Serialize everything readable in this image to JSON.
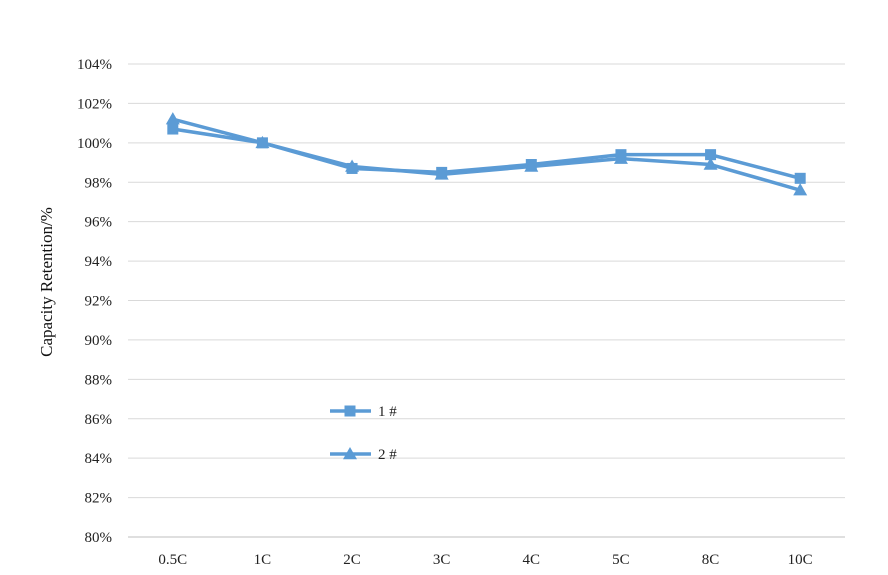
{
  "chart_data": {
    "type": "line",
    "categories": [
      "0.5C",
      "1C",
      "2C",
      "3C",
      "4C",
      "5C",
      "8C",
      "10C"
    ],
    "series": [
      {
        "name": "1 #",
        "marker": "square",
        "color": "#5b9bd5",
        "values": [
          100.7,
          100.0,
          98.7,
          98.5,
          98.9,
          99.4,
          99.4,
          98.2
        ]
      },
      {
        "name": "2 #",
        "marker": "triangle",
        "color": "#5b9bd5",
        "values": [
          101.2,
          100.0,
          98.8,
          98.4,
          98.8,
          99.2,
          98.9,
          97.6
        ]
      }
    ],
    "ylabel": "Capacity Retention/%",
    "ylim": [
      80,
      104
    ],
    "yticks": [
      "80%",
      "82%",
      "84%",
      "86%",
      "88%",
      "90%",
      "92%",
      "94%",
      "96%",
      "98%",
      "100%",
      "102%",
      "104%"
    ],
    "grid": true,
    "legend_position": "inside-lower-left"
  }
}
